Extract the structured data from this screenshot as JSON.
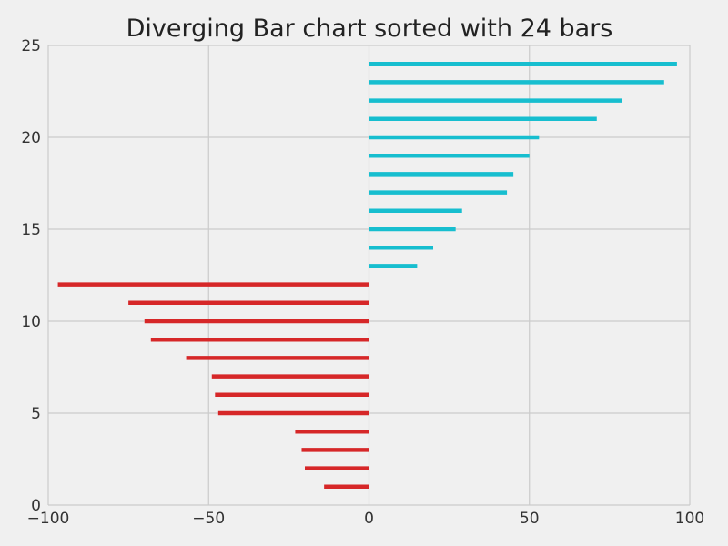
{
  "chart_data": {
    "type": "bar",
    "orientation": "horizontal",
    "title": "Diverging Bar chart sorted with 24 bars",
    "xlabel": "",
    "ylabel": "",
    "xlim": [
      -100,
      100
    ],
    "ylim": [
      0,
      25
    ],
    "xticks": [
      -100,
      -50,
      0,
      50,
      100
    ],
    "xtick_labels": [
      "−100",
      "−50",
      "0",
      "50",
      "100"
    ],
    "yticks": [
      0,
      5,
      10,
      15,
      20,
      25
    ],
    "ytick_labels": [
      "0",
      "5",
      "10",
      "15",
      "20",
      "25"
    ],
    "grid": true,
    "legend": "none",
    "colors": {
      "negative": "#d62728",
      "positive": "#17becf",
      "background": "#f0f0f0",
      "grid": "#cbcbcb"
    },
    "positions": [
      1,
      2,
      3,
      4,
      5,
      6,
      7,
      8,
      9,
      10,
      11,
      12,
      13,
      14,
      15,
      16,
      17,
      18,
      19,
      20,
      21,
      22,
      23,
      24
    ],
    "values": [
      -14,
      -20,
      -21,
      -23,
      -47,
      -48,
      -49,
      -57,
      -68,
      -70,
      -75,
      -97,
      15,
      20,
      27,
      29,
      43,
      45,
      50,
      53,
      71,
      79,
      92,
      96
    ]
  }
}
